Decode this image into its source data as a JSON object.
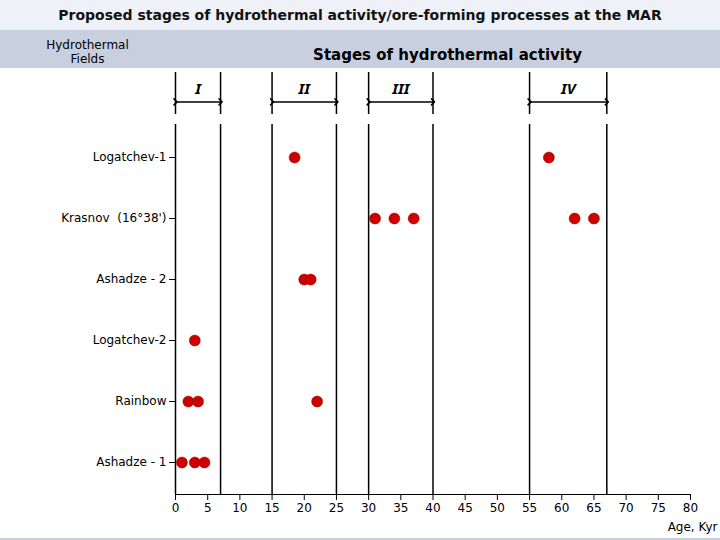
{
  "chart_data": {
    "type": "scatter",
    "title": "Proposed stages of hydrothermal activity/ore-forming processes at the MAR",
    "subtitle": "Stages of hydrothermal activity",
    "xlabel": "Age, Kyr",
    "ylabel": "Hydrothermal\nFields",
    "categories": [
      "Logatchev-1",
      "Krasnov  (16°38')",
      "Ashadze - 2",
      "Logatchev-2",
      "Rainbow",
      "Ashadze - 1"
    ],
    "values": [
      [
        18.5,
        58
      ],
      [
        31,
        34,
        37,
        62,
        65
      ],
      [
        20,
        21
      ],
      [
        3
      ],
      [
        2,
        3.5,
        22
      ],
      [
        1,
        3,
        4.5
      ]
    ],
    "color": "#cc0000",
    "xlim": [
      0,
      80
    ],
    "xticks": [
      0,
      5,
      10,
      15,
      20,
      25,
      30,
      35,
      40,
      45,
      50,
      55,
      60,
      65,
      70,
      75,
      80
    ],
    "annotations": [
      {
        "text": "I",
        "x": [
          0,
          7
        ]
      },
      {
        "text": "II",
        "x": [
          15,
          25
        ]
      },
      {
        "text": "III",
        "x": [
          30,
          40
        ]
      },
      {
        "text": "IV",
        "x": [
          55,
          67
        ]
      }
    ]
  }
}
